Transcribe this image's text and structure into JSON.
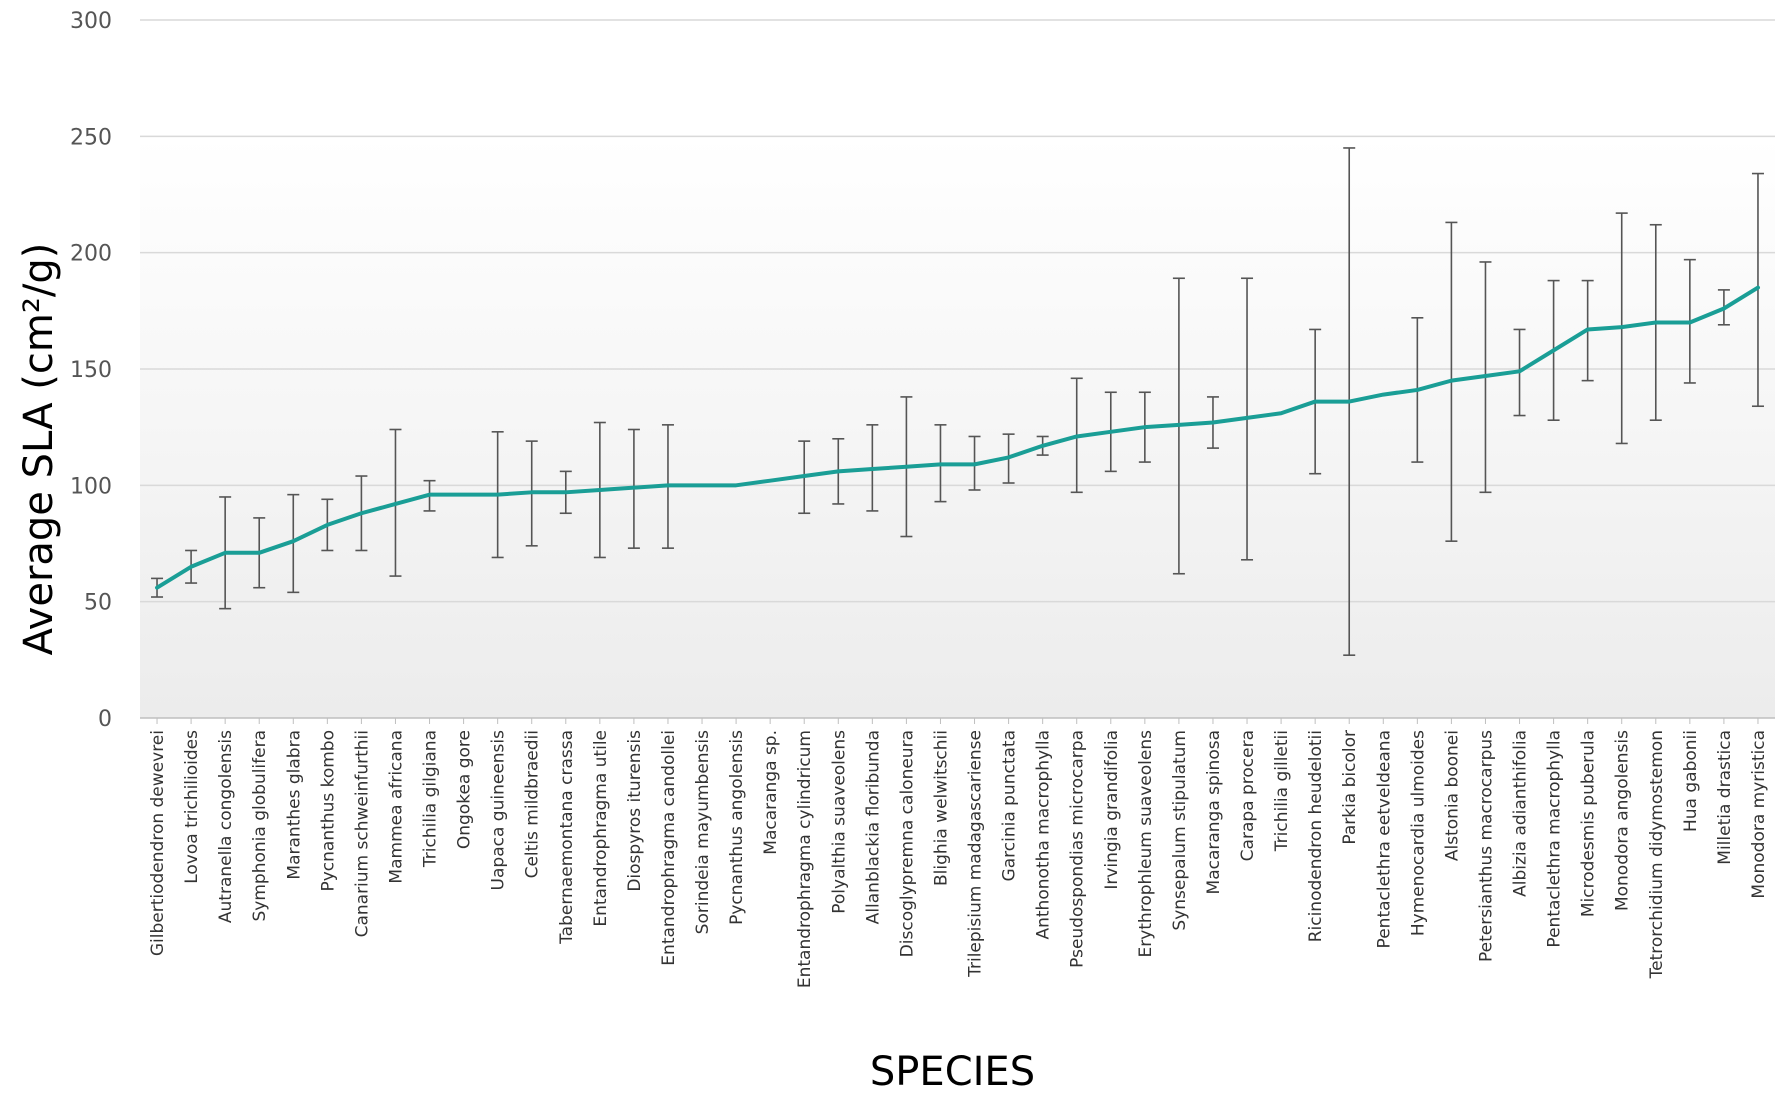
{
  "chart_data": {
    "type": "line",
    "title": "",
    "xlabel": "SPECIES",
    "ylabel": "Average SLA (cm²/g)",
    "ylim": [
      0,
      300
    ],
    "yticks": [
      0,
      50,
      100,
      150,
      200,
      250,
      300
    ],
    "grid": true,
    "legend": "none",
    "line_color": "#1a9e96",
    "error_bar_color": "#555555",
    "categories": [
      "Gilbertiodendron dewevrei",
      "Lovoa trichilioides",
      "Autranella congolensis",
      "Symphonia globulifera",
      "Maranthes glabra",
      "Pycnanthus kombo",
      "Canarium schweinfurthii",
      "Mammea africana",
      "Trichilia gilgiana",
      "Ongokea gore",
      "Uapaca guineensis",
      "Celtis mildbraedii",
      "Tabernaemontana crassa",
      "Entandrophragma utile",
      "Diospyros iturensis",
      "Entandrophragma candollei",
      "Sorindeia mayumbensis",
      "Pycnanthus angolensis",
      "Macaranga sp.",
      "Entandrophragma cylindricum",
      "Polyalthia suaveolens",
      "Allanblackia floribunda",
      "Discoglypremna caloneura",
      "Blighia welwitschii",
      "Trilepisium madagascariense",
      "Garcinia punctata",
      "Anthonotha macrophylla",
      "Pseudospondias microcarpa",
      "Irvingia grandifolia",
      "Erythrophleum suaveolens",
      "Synsepalum stipulatum",
      "Macaranga spinosa",
      "Carapa procera",
      "Trichilia gilletii",
      "Ricinodendron heudelotii",
      "Parkia bicolor",
      "Pentaclethra eetveldeana",
      "Hymenocardia ulmoides",
      "Alstonia boonei",
      "Petersianthus macrocarpus",
      "Albizia adianthifolia",
      "Pentaclethra macrophylla",
      "Microdesmis puberula",
      "Monodora angolensis",
      "Tetrorchidium didymostemon",
      "Hua gabonii",
      "Milletia drastica",
      "Monodora myristica"
    ],
    "series": [
      {
        "values": [
          56,
          65,
          71,
          71,
          76,
          83,
          88,
          92,
          96,
          96,
          96,
          97,
          97,
          98,
          99,
          100,
          100,
          100,
          102,
          104,
          106,
          107,
          108,
          109,
          109,
          112,
          117,
          121,
          123,
          125,
          126,
          127,
          129,
          131,
          136,
          136,
          139,
          141,
          145,
          147,
          149,
          158,
          167,
          168,
          170,
          170,
          176,
          185
        ],
        "error_low": [
          52,
          58,
          47,
          56,
          54,
          72,
          72,
          61,
          89,
          null,
          69,
          74,
          88,
          69,
          73,
          73,
          null,
          null,
          null,
          88,
          92,
          89,
          78,
          93,
          98,
          101,
          113,
          97,
          106,
          110,
          62,
          116,
          68,
          null,
          105,
          27,
          null,
          110,
          76,
          97,
          130,
          128,
          145,
          118,
          128,
          144,
          169,
          134
        ],
        "error_high": [
          60,
          72,
          95,
          86,
          96,
          94,
          104,
          124,
          102,
          null,
          123,
          119,
          106,
          127,
          124,
          126,
          null,
          null,
          null,
          119,
          120,
          126,
          138,
          126,
          121,
          122,
          121,
          146,
          140,
          140,
          189,
          138,
          189,
          null,
          167,
          245,
          null,
          172,
          213,
          196,
          167,
          188,
          188,
          217,
          212,
          197,
          184,
          234
        ]
      }
    ]
  }
}
